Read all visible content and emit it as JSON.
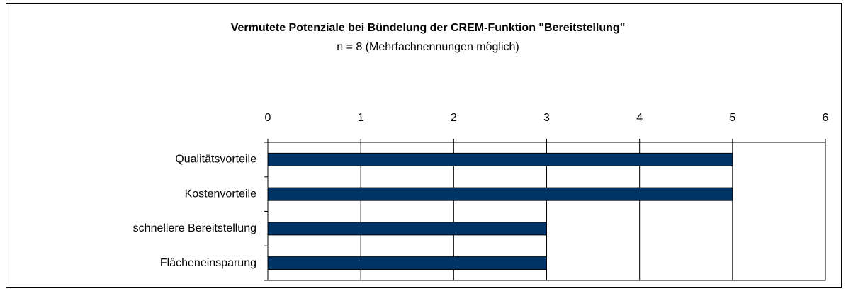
{
  "chart_data": {
    "type": "hbar",
    "title": "Vermutete Potenziale bei Bündelung der CREM-Funktion \"Bereitstellung\"",
    "subtitle": "n = 8 (Mehrfachnennungen möglich)",
    "categories": [
      "Qualitätsvorteile",
      "Kostenvorteile",
      "schnellere Bereitstellung",
      "Flächeneinsparung"
    ],
    "values": [
      5,
      5,
      3,
      3
    ],
    "color": "#003366",
    "xlim": [
      0,
      6
    ],
    "xticks": [
      0,
      1,
      2,
      3,
      4,
      5,
      6
    ],
    "grid": true
  }
}
